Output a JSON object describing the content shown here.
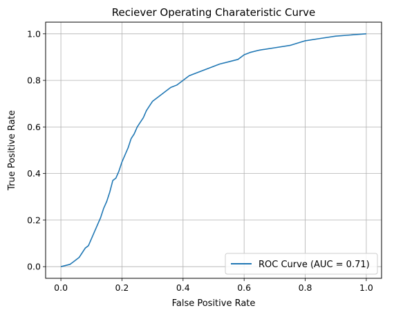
{
  "chart_data": {
    "type": "line",
    "title": "Reciever Operating Charateristic Curve",
    "xlabel": "False Positive Rate",
    "ylabel": "True Positive Rate",
    "xlim": [
      -0.05,
      1.05
    ],
    "ylim": [
      -0.05,
      1.05
    ],
    "xticks": [
      0.0,
      0.2,
      0.4,
      0.6,
      0.8,
      1.0
    ],
    "yticks": [
      0.0,
      0.2,
      0.4,
      0.6,
      0.8,
      1.0
    ],
    "xtick_labels": [
      "0.0",
      "0.2",
      "0.4",
      "0.6",
      "0.8",
      "1.0"
    ],
    "ytick_labels": [
      "0.0",
      "0.2",
      "0.4",
      "0.6",
      "0.8",
      "1.0"
    ],
    "grid": true,
    "legend_position": "lower-right",
    "series": [
      {
        "name": "ROC Curve (AUC = 0.71)",
        "color": "#1f77b4",
        "x": [
          0.0,
          0.03,
          0.04,
          0.06,
          0.07,
          0.08,
          0.09,
          0.1,
          0.11,
          0.12,
          0.13,
          0.14,
          0.15,
          0.16,
          0.17,
          0.18,
          0.19,
          0.2,
          0.21,
          0.22,
          0.23,
          0.24,
          0.25,
          0.26,
          0.27,
          0.28,
          0.29,
          0.3,
          0.32,
          0.34,
          0.36,
          0.38,
          0.4,
          0.42,
          0.44,
          0.46,
          0.48,
          0.5,
          0.52,
          0.55,
          0.58,
          0.6,
          0.62,
          0.65,
          0.7,
          0.75,
          0.8,
          0.85,
          0.9,
          0.95,
          1.0
        ],
        "y": [
          0.0,
          0.01,
          0.02,
          0.04,
          0.06,
          0.08,
          0.09,
          0.12,
          0.15,
          0.18,
          0.21,
          0.25,
          0.28,
          0.32,
          0.37,
          0.38,
          0.41,
          0.45,
          0.48,
          0.51,
          0.55,
          0.57,
          0.6,
          0.62,
          0.64,
          0.67,
          0.69,
          0.71,
          0.73,
          0.75,
          0.77,
          0.78,
          0.8,
          0.82,
          0.83,
          0.84,
          0.85,
          0.86,
          0.87,
          0.88,
          0.89,
          0.91,
          0.92,
          0.93,
          0.94,
          0.95,
          0.97,
          0.98,
          0.99,
          0.995,
          1.0
        ]
      }
    ]
  }
}
